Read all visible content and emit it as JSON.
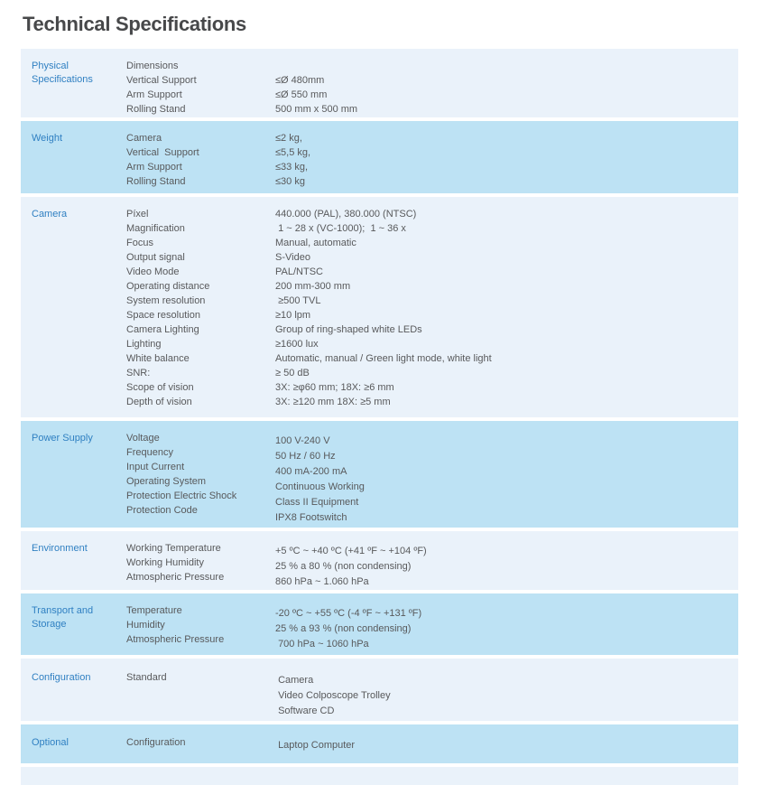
{
  "title": "Technical Specifications",
  "colors": {
    "row_light": "#eaf2fa",
    "row_dark": "#bde2f4",
    "category_text": "#3080c2",
    "body_text": "#58595b",
    "title_text": "#47484a"
  },
  "sections": [
    {
      "category": "Physical Specifications",
      "rows": [
        {
          "label": "Dimensions",
          "value": ""
        },
        {
          "label": "Vertical Support",
          "value": "≤Ø 480mm"
        },
        {
          "label": "Arm Support",
          "value": "≤Ø 550 mm"
        },
        {
          "label": "Rolling Stand",
          "value": "500 mm x 500 mm"
        }
      ]
    },
    {
      "category": "Weight",
      "rows": [
        {
          "label": "Camera",
          "value": "≤2 kg,"
        },
        {
          "label": "Vertical  Support",
          "value": "≤5,5 kg,"
        },
        {
          "label": "Arm Support",
          "value": "≤33 kg,"
        },
        {
          "label": "Rolling Stand",
          "value": "≤30 kg"
        }
      ]
    },
    {
      "category": "Camera",
      "rows": [
        {
          "label": "Píxel",
          "value": "440.000 (PAL), 380.000 (NTSC)"
        },
        {
          "label": "Magnification",
          "value": " 1 ~ 28 x (VC-1000);  1 ~ 36 x"
        },
        {
          "label": "Focus",
          "value": "Manual, automatic"
        },
        {
          "label": "Output signal",
          "value": "S-Video"
        },
        {
          "label": "Video Mode",
          "value": "PAL/NTSC"
        },
        {
          "label": "Operating distance",
          "value": "200 mm-300 mm"
        },
        {
          "label": "System resolution",
          "value": " ≥500 TVL"
        },
        {
          "label": "Space resolution",
          "value": "≥10 lpm"
        },
        {
          "label": "Camera Lighting",
          "value": "Group of ring-shaped white LEDs"
        },
        {
          "label": "Lighting",
          "value": "≥1600 lux"
        },
        {
          "label": "White balance",
          "value": "Automatic, manual / Green light mode, white light"
        },
        {
          "label": "SNR:",
          "value": "≥ 50 dB"
        },
        {
          "label": "Scope of vision",
          "value": "3X: ≥φ60 mm; 18X: ≥6 mm"
        },
        {
          "label": "Depth of vision",
          "value": "3X: ≥120 mm 18X: ≥5 mm"
        }
      ]
    },
    {
      "category": "Power Supply",
      "rows": [
        {
          "label": "Voltage",
          "value": "100 V-240 V"
        },
        {
          "label": "Frequency",
          "value": "50 Hz / 60 Hz"
        },
        {
          "label": "Input Current",
          "value": "400 mA-200 mA"
        },
        {
          "label": "Operating System",
          "value": "Continuous Working"
        },
        {
          "label": "Protection Electric Shock",
          "value": "Class II Equipment"
        },
        {
          "label": "Protection Code",
          "value": "IPX8 Footswitch"
        }
      ]
    },
    {
      "category": "Environment",
      "rows": [
        {
          "label": "Working Temperature",
          "value": "+5 ºC ~ +40 ºC (+41 ºF ~ +104 ºF)"
        },
        {
          "label": "Working Humidity",
          "value": "25 % a 80 % (non condensing)"
        },
        {
          "label": "Atmospheric Pressure",
          "value": "860 hPa ~ 1.060 hPa"
        }
      ]
    },
    {
      "category": "Transport and Storage",
      "rows": [
        {
          "label": "Temperature",
          "value": "-20 ºC ~ +55 ºC (-4 ºF ~ +131 ºF)"
        },
        {
          "label": "Humidity",
          "value": "25 % a 93 % (non condensing)"
        },
        {
          "label": "Atmospheric Pressure",
          "value": " 700 hPa ~ 1060 hPa"
        }
      ]
    },
    {
      "category": "Configuration",
      "rows": [
        {
          "label": "Standard",
          "value": " Camera"
        },
        {
          "label": "",
          "value": " Video Colposcope Trolley"
        },
        {
          "label": "",
          "value": " Software CD"
        }
      ]
    },
    {
      "category": "Optional",
      "rows": [
        {
          "label": "Configuration",
          "value": " Laptop Computer"
        }
      ]
    },
    {
      "category": "",
      "rows": []
    }
  ]
}
